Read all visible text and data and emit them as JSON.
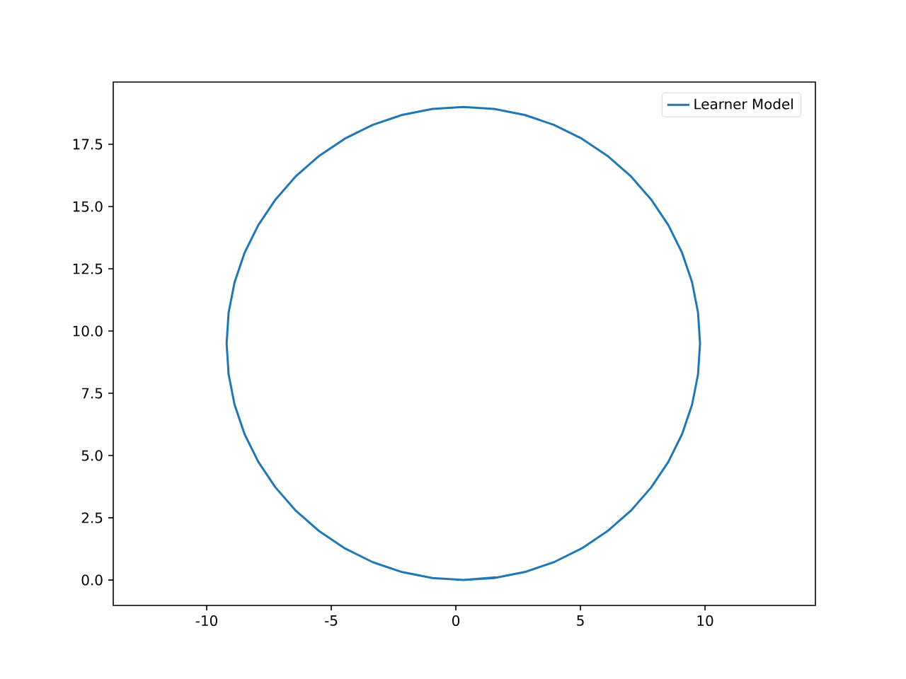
{
  "chart_data": {
    "type": "line",
    "series": [
      {
        "name": "Learner Model",
        "color": "#1f77b4",
        "x": [
          0.3,
          1.54,
          2.76,
          3.94,
          5.05,
          6.08,
          7.02,
          7.84,
          8.53,
          9.08,
          9.48,
          9.72,
          9.8,
          9.72,
          9.48,
          9.08,
          8.53,
          7.84,
          7.02,
          6.08,
          5.05,
          3.94,
          2.76,
          1.54,
          0.3,
          -0.94,
          -2.16,
          -3.34,
          -4.45,
          -5.48,
          -6.42,
          -7.24,
          -7.93,
          -8.48,
          -8.88,
          -9.12,
          -9.2,
          -9.12,
          -8.88,
          -8.48,
          -7.93,
          -7.24,
          -6.42,
          -5.48,
          -4.45,
          -3.34,
          -2.16,
          -0.94,
          0.3,
          1.6
        ],
        "values": [
          0,
          0.08,
          0.32,
          0.72,
          1.27,
          1.96,
          2.78,
          3.72,
          4.75,
          5.86,
          7.04,
          8.26,
          9.5,
          10.74,
          11.96,
          13.14,
          14.25,
          15.28,
          16.22,
          17.04,
          17.73,
          18.28,
          18.68,
          18.92,
          19,
          18.92,
          18.68,
          18.28,
          17.73,
          17.04,
          16.22,
          15.28,
          14.25,
          13.14,
          11.96,
          10.74,
          9.5,
          8.26,
          7.04,
          5.86,
          4.75,
          3.72,
          2.78,
          1.96,
          1.27,
          0.72,
          0.32,
          0.08,
          0,
          0.11
        ]
      }
    ],
    "xlim": [
      -13.75,
      14.43
    ],
    "ylim": [
      -1.02,
      20.0
    ],
    "xticks": [
      -10,
      -5,
      0,
      5,
      10
    ],
    "yticks": [
      {
        "value": 0,
        "label": "0.0"
      },
      {
        "value": 2.5,
        "label": "2.5"
      },
      {
        "value": 5,
        "label": "5.0"
      },
      {
        "value": 7.5,
        "label": "7.5"
      },
      {
        "value": 10,
        "label": "10.0"
      },
      {
        "value": 12.5,
        "label": "12.5"
      },
      {
        "value": 15,
        "label": "15.0"
      },
      {
        "value": 17.5,
        "label": "17.5"
      }
    ],
    "grid": false,
    "legend": "top right",
    "marker": "none",
    "line_style": "solid"
  }
}
